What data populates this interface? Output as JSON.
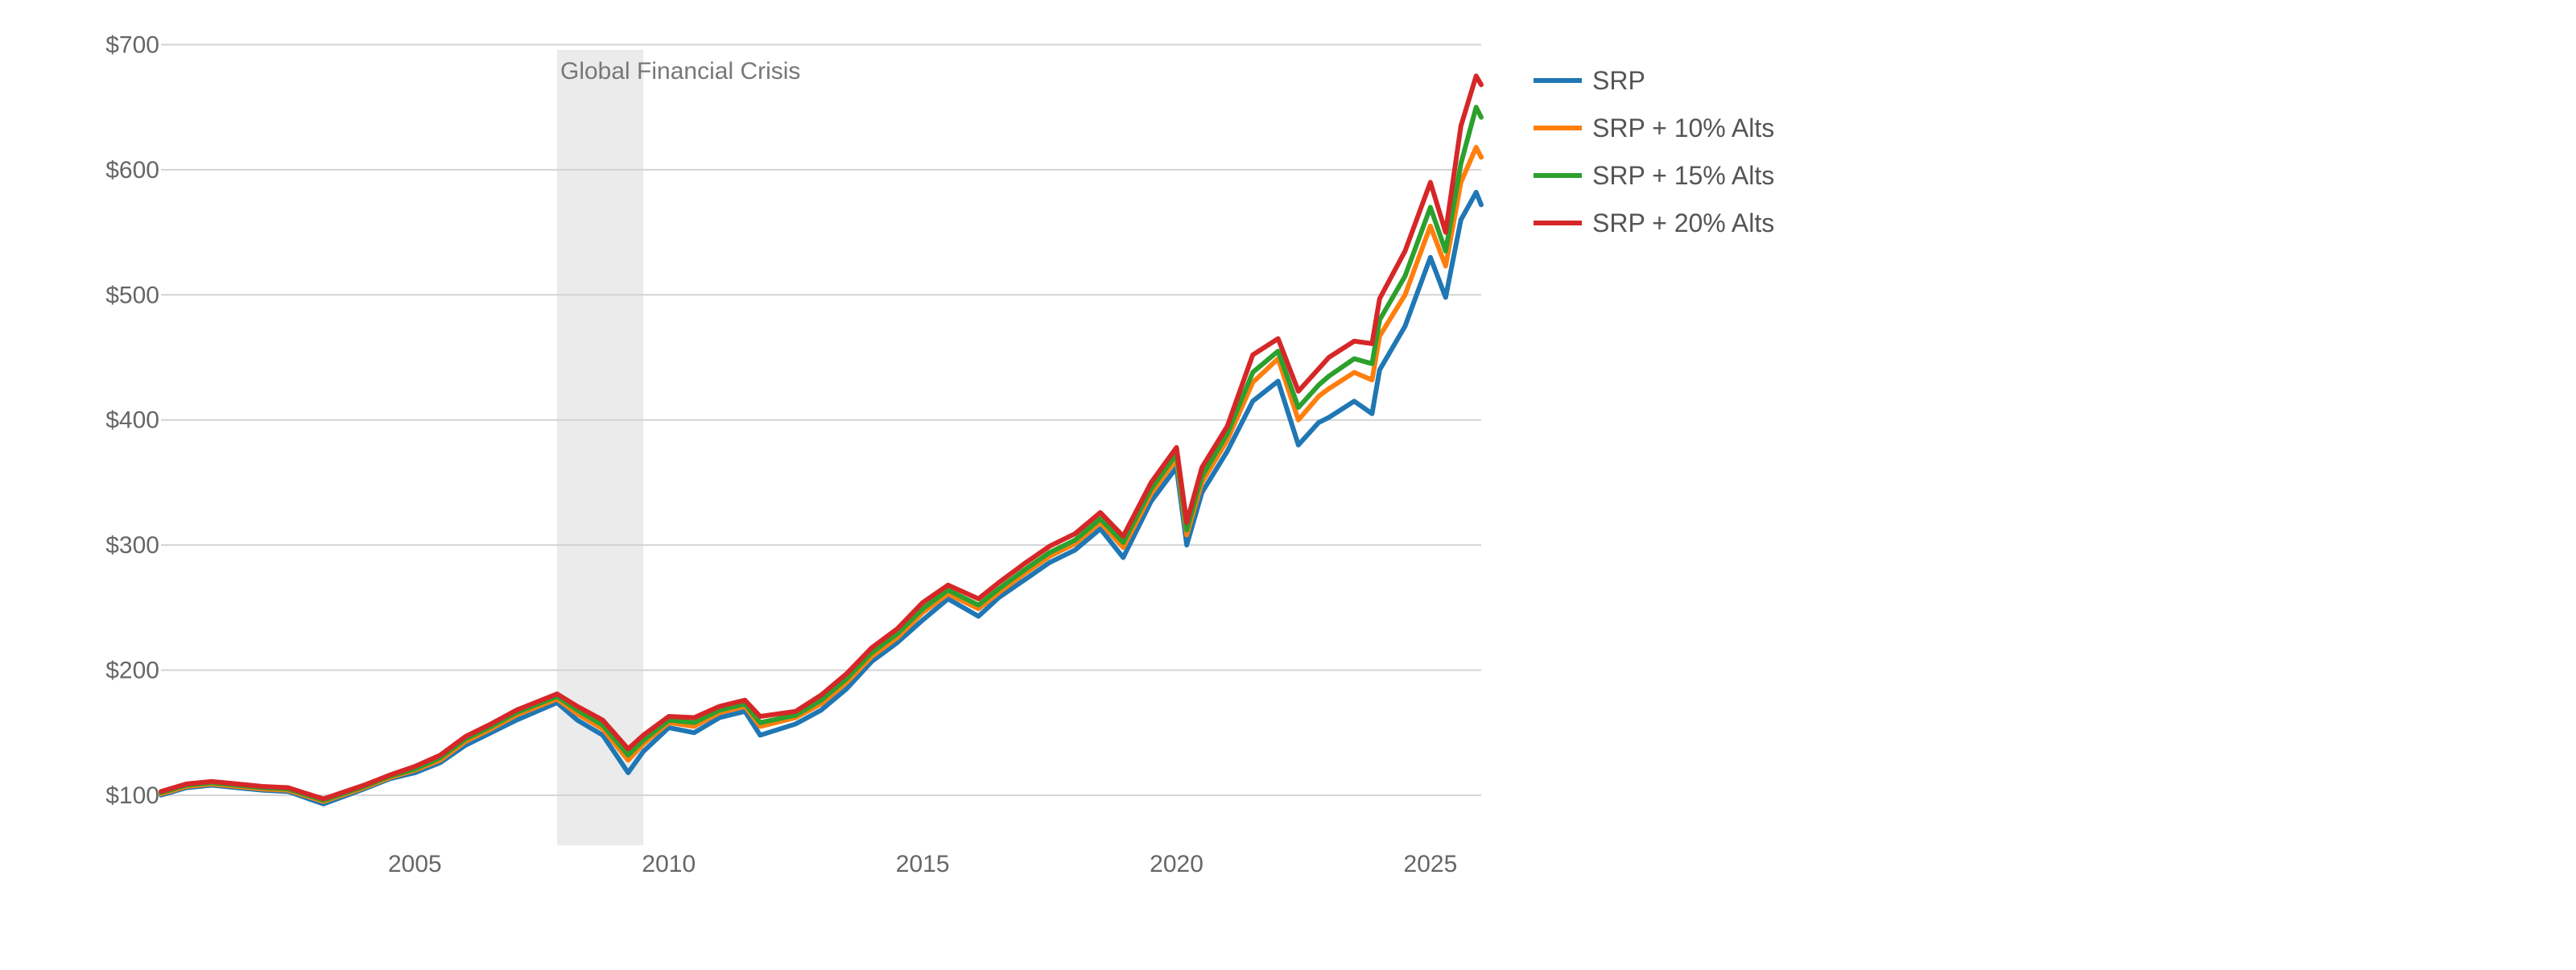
{
  "chart_data": {
    "type": "line",
    "y_ticks": [
      {
        "value": 100,
        "label": "$100"
      },
      {
        "value": 200,
        "label": "$200"
      },
      {
        "value": 300,
        "label": "$300"
      },
      {
        "value": 400,
        "label": "$400"
      },
      {
        "value": 500,
        "label": "$500"
      },
      {
        "value": 600,
        "label": "$600"
      },
      {
        "value": 700,
        "label": "$700"
      }
    ],
    "x_ticks": [
      {
        "value": 2005,
        "label": "2005"
      },
      {
        "value": 2010,
        "label": "2010"
      },
      {
        "value": 2015,
        "label": "2015"
      },
      {
        "value": 2020,
        "label": "2020"
      },
      {
        "value": 2025,
        "label": "2025"
      }
    ],
    "xlim": [
      2000.0,
      2026.0
    ],
    "ylim": [
      60,
      710
    ],
    "grid": "horizontal",
    "legend_position": "right",
    "annotation": {
      "label": "Global Financial Crisis",
      "x_start": 2007.8,
      "x_end": 2009.5
    },
    "series": [
      {
        "name": "SRP",
        "color": "#1f77b4",
        "x": [
          2000.0,
          2000.5,
          2001.0,
          2001.5,
          2002.0,
          2002.5,
          2003.2,
          2004.0,
          2004.5,
          2005.0,
          2005.5,
          2006.0,
          2006.5,
          2007.0,
          2007.8,
          2008.2,
          2008.7,
          2009.2,
          2009.5,
          2010.0,
          2010.5,
          2011.0,
          2011.5,
          2011.8,
          2012.5,
          2013.0,
          2013.5,
          2014.0,
          2014.5,
          2015.0,
          2015.5,
          2016.1,
          2016.5,
          2017.0,
          2017.5,
          2018.0,
          2018.5,
          2018.95,
          2019.5,
          2020.0,
          2020.2,
          2020.5,
          2021.0,
          2021.5,
          2022.0,
          2022.4,
          2022.8,
          2023.0,
          2023.5,
          2023.85,
          2024.0,
          2024.5,
          2025.0,
          2025.3,
          2025.6,
          2025.9,
          2026.0
        ],
        "y": [
          100,
          106,
          108,
          106,
          104,
          103,
          93,
          105,
          113,
          118,
          126,
          140,
          150,
          160,
          174,
          160,
          148,
          118,
          135,
          154,
          150,
          162,
          167,
          148,
          157,
          168,
          185,
          207,
          222,
          240,
          257,
          243,
          258,
          272,
          286,
          296,
          313,
          290,
          335,
          362,
          300,
          342,
          375,
          415,
          431,
          380,
          398,
          402,
          415,
          405,
          440,
          475,
          530,
          498,
          560,
          582,
          572
        ]
      },
      {
        "name": "SRP + 10% Alts",
        "color": "#ff7f0e",
        "x": [
          2000.0,
          2000.5,
          2001.0,
          2001.5,
          2002.0,
          2002.5,
          2003.2,
          2004.0,
          2004.5,
          2005.0,
          2005.5,
          2006.0,
          2006.5,
          2007.0,
          2007.8,
          2008.2,
          2008.7,
          2009.2,
          2009.5,
          2010.0,
          2010.5,
          2011.0,
          2011.5,
          2011.8,
          2012.5,
          2013.0,
          2013.5,
          2014.0,
          2014.5,
          2015.0,
          2015.5,
          2016.1,
          2016.5,
          2017.0,
          2017.5,
          2018.0,
          2018.5,
          2018.95,
          2019.5,
          2020.0,
          2020.2,
          2020.5,
          2021.0,
          2021.5,
          2022.0,
          2022.4,
          2022.8,
          2023.0,
          2023.5,
          2023.85,
          2024.0,
          2024.5,
          2025.0,
          2025.3,
          2025.6,
          2025.9,
          2026.0
        ],
        "y": [
          101,
          107,
          109,
          107,
          105,
          104,
          95,
          106,
          114,
          120,
          128,
          143,
          153,
          164,
          177,
          165,
          153,
          128,
          141,
          158,
          155,
          166,
          171,
          155,
          162,
          173,
          190,
          211,
          226,
          246,
          261,
          249,
          262,
          277,
          291,
          301,
          318,
          298,
          341,
          369,
          308,
          350,
          384,
          430,
          449,
          400,
          419,
          425,
          438,
          432,
          467,
          500,
          555,
          523,
          590,
          618,
          610
        ]
      },
      {
        "name": "SRP + 15% Alts",
        "color": "#2ca02c",
        "x": [
          2000.0,
          2000.5,
          2001.0,
          2001.5,
          2002.0,
          2002.5,
          2003.2,
          2004.0,
          2004.5,
          2005.0,
          2005.5,
          2006.0,
          2006.5,
          2007.0,
          2007.8,
          2008.2,
          2008.7,
          2009.2,
          2009.5,
          2010.0,
          2010.5,
          2011.0,
          2011.5,
          2011.8,
          2012.5,
          2013.0,
          2013.5,
          2014.0,
          2014.5,
          2015.0,
          2015.5,
          2016.1,
          2016.5,
          2017.0,
          2017.5,
          2018.0,
          2018.5,
          2018.95,
          2019.5,
          2020.0,
          2020.2,
          2020.5,
          2021.0,
          2021.5,
          2022.0,
          2022.4,
          2022.8,
          2023.0,
          2023.5,
          2023.85,
          2024.0,
          2024.5,
          2025.0,
          2025.3,
          2025.6,
          2025.9,
          2026.0
        ],
        "y": [
          102,
          108,
          110,
          108,
          106,
          105,
          96,
          107,
          115,
          121,
          130,
          145,
          155,
          166,
          179,
          168,
          156,
          132,
          144,
          160,
          158,
          168,
          173,
          158,
          164,
          176,
          193,
          214,
          229,
          249,
          264,
          252,
          265,
          280,
          294,
          304,
          321,
          302,
          345,
          373,
          312,
          355,
          389,
          438,
          455,
          410,
          428,
          435,
          449,
          445,
          480,
          515,
          570,
          535,
          605,
          650,
          642
        ]
      },
      {
        "name": "SRP + 20% Alts",
        "color": "#d62728",
        "x": [
          2000.0,
          2000.5,
          2001.0,
          2001.5,
          2002.0,
          2002.5,
          2003.2,
          2004.0,
          2004.5,
          2005.0,
          2005.5,
          2006.0,
          2006.5,
          2007.0,
          2007.8,
          2008.2,
          2008.7,
          2009.2,
          2009.5,
          2010.0,
          2010.5,
          2011.0,
          2011.5,
          2011.8,
          2012.5,
          2013.0,
          2013.5,
          2014.0,
          2014.5,
          2015.0,
          2015.5,
          2016.1,
          2016.5,
          2017.0,
          2017.5,
          2018.0,
          2018.5,
          2018.95,
          2019.5,
          2020.0,
          2020.2,
          2020.5,
          2021.0,
          2021.5,
          2022.0,
          2022.4,
          2022.8,
          2023.0,
          2023.5,
          2023.85,
          2024.0,
          2024.5,
          2025.0,
          2025.3,
          2025.6,
          2025.9,
          2026.0
        ],
        "y": [
          103,
          109,
          111,
          109,
          107,
          106,
          97,
          108,
          116,
          123,
          132,
          147,
          157,
          168,
          181,
          171,
          160,
          137,
          148,
          163,
          162,
          171,
          176,
          163,
          167,
          180,
          197,
          218,
          233,
          254,
          268,
          257,
          270,
          285,
          299,
          309,
          326,
          307,
          350,
          378,
          318,
          362,
          395,
          452,
          465,
          423,
          441,
          450,
          463,
          461,
          497,
          535,
          590,
          550,
          635,
          675,
          668
        ]
      }
    ]
  }
}
